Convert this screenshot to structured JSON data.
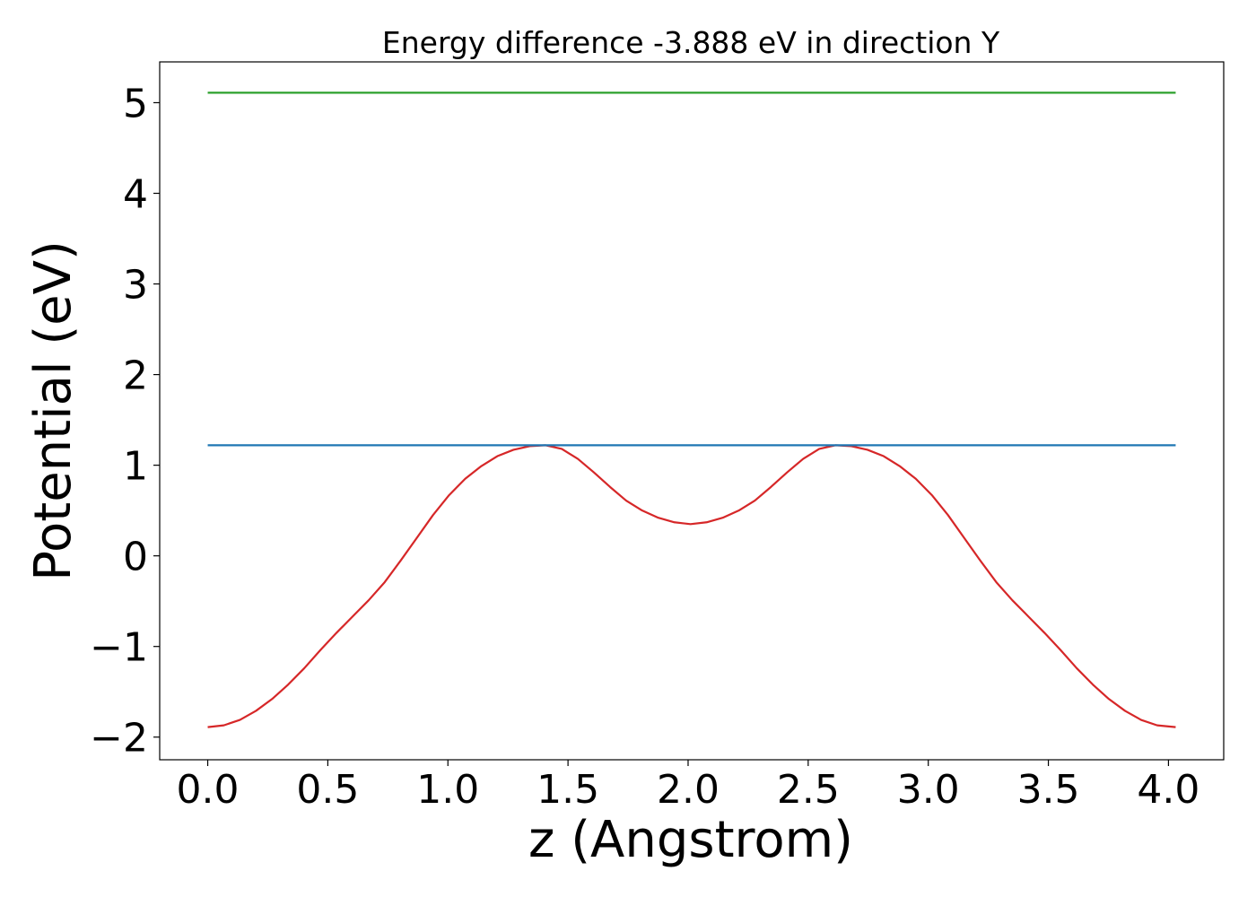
{
  "chart_data": {
    "type": "line",
    "title": "Energy difference -3.888 eV in direction Y",
    "xlabel": "z (Angstrom)",
    "ylabel": "Potential (eV)",
    "xlim": [
      -0.2,
      4.23
    ],
    "ylim": [
      -2.25,
      5.45
    ],
    "xticks": [
      0.0,
      0.5,
      1.0,
      1.5,
      2.0,
      2.5,
      3.0,
      3.5,
      4.0
    ],
    "xtick_labels": [
      "0.0",
      "0.5",
      "1.0",
      "1.5",
      "2.0",
      "2.5",
      "3.0",
      "3.5",
      "4.0"
    ],
    "yticks": [
      -2,
      -1,
      0,
      1,
      2,
      3,
      4,
      5
    ],
    "ytick_labels": [
      "−2",
      "−1",
      "0",
      "1",
      "2",
      "3",
      "4",
      "5"
    ],
    "grid": false,
    "series": [
      {
        "color": "#d62728",
        "x": [
          0.0,
          0.067,
          0.134,
          0.201,
          0.268,
          0.335,
          0.402,
          0.469,
          0.536,
          0.603,
          0.67,
          0.737,
          0.804,
          0.871,
          0.938,
          1.005,
          1.072,
          1.139,
          1.206,
          1.273,
          1.34,
          1.407,
          1.474,
          1.541,
          1.608,
          1.675,
          1.742,
          1.809,
          1.876,
          1.943,
          2.01,
          2.077,
          2.144,
          2.211,
          2.278,
          2.345,
          2.412,
          2.479,
          2.546,
          2.613,
          2.68,
          2.747,
          2.814,
          2.881,
          2.948,
          3.015,
          3.082,
          3.149,
          3.216,
          3.283,
          3.35,
          3.417,
          3.484,
          3.551,
          3.618,
          3.685,
          3.752,
          3.819,
          3.886,
          3.953,
          4.03
        ],
        "y": [
          -1.89,
          -1.87,
          -1.81,
          -1.71,
          -1.58,
          -1.42,
          -1.24,
          -1.04,
          -0.85,
          -0.67,
          -0.49,
          -0.29,
          -0.05,
          0.2,
          0.45,
          0.67,
          0.85,
          0.99,
          1.1,
          1.17,
          1.21,
          1.22,
          1.18,
          1.07,
          0.92,
          0.76,
          0.61,
          0.5,
          0.42,
          0.37,
          0.35,
          0.37,
          0.42,
          0.5,
          0.61,
          0.76,
          0.92,
          1.07,
          1.18,
          1.22,
          1.21,
          1.17,
          1.1,
          0.99,
          0.85,
          0.67,
          0.45,
          0.2,
          -0.05,
          -0.29,
          -0.49,
          -0.67,
          -0.85,
          -1.04,
          -1.24,
          -1.42,
          -1.58,
          -1.71,
          -1.81,
          -1.87,
          -1.89
        ]
      },
      {
        "color": "#1f77b4",
        "x": [
          0.0,
          4.03
        ],
        "y": [
          1.22,
          1.22
        ]
      },
      {
        "color": "#2ca02c",
        "x": [
          0.0,
          4.03
        ],
        "y": [
          5.11,
          5.11
        ]
      }
    ]
  }
}
